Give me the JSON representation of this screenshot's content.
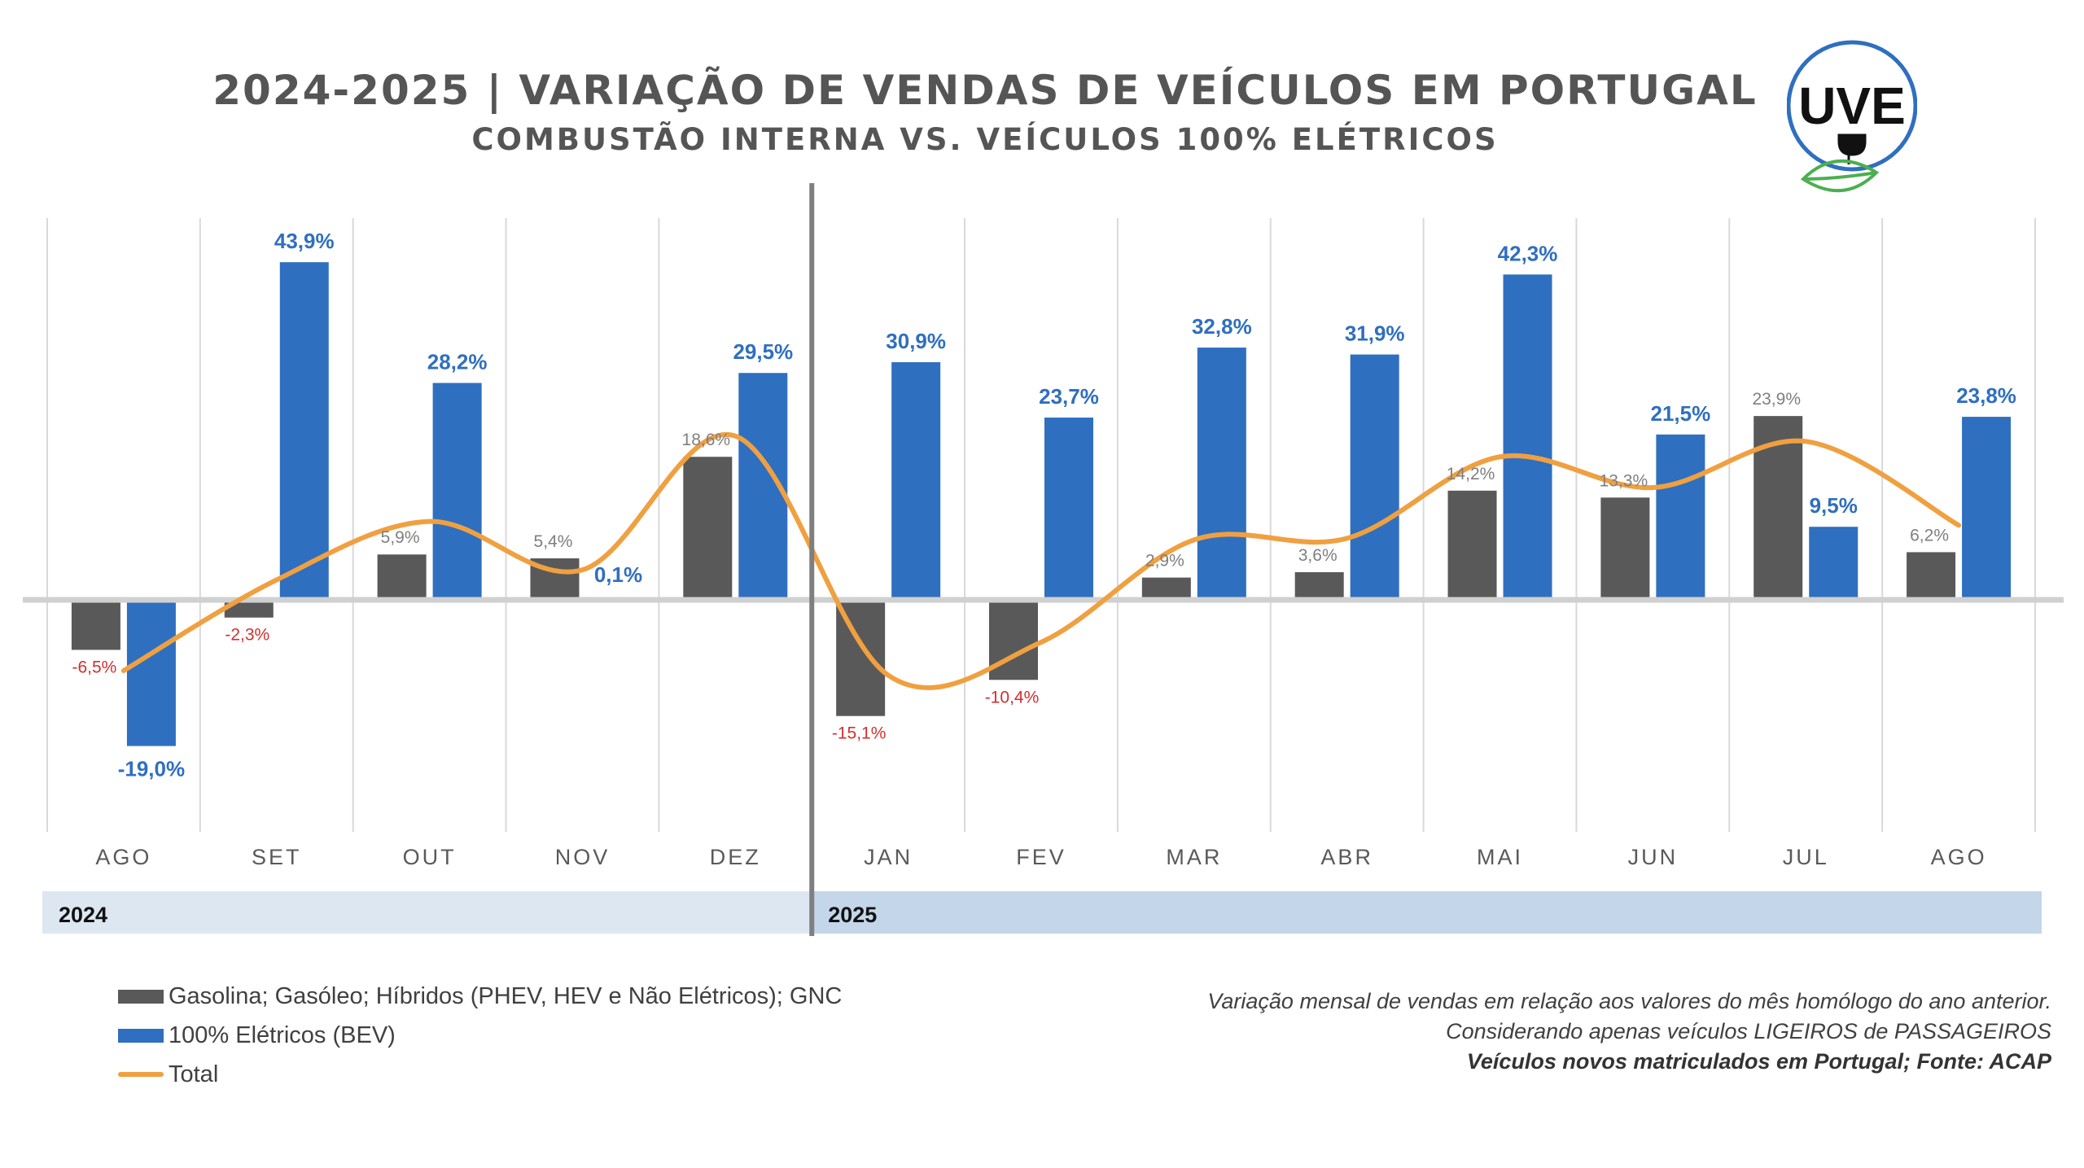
{
  "title": "2024-2025 | VARIAÇÃO DE VENDAS DE VEÍCULOS EM PORTUGAL",
  "subtitle": "COMBUSTÃO INTERNA VS. VEÍCULOS 100% ELÉTRICOS",
  "logo": {
    "text": "UVE"
  },
  "legend": {
    "combustion": "Gasolina; Gasóleo; Híbridos (PHEV, HEV e Não Elétricos); GNC",
    "bev": "100% Elétricos (BEV)",
    "total": "Total"
  },
  "notes": {
    "line1": "Variação mensal de vendas em relação aos valores do mês homólogo do ano anterior.",
    "line2": "Considerando apenas veículos LIGEIROS de PASSAGEIROS",
    "line3": "Veículos novos matriculados em Portugal; Fonte: ACAP"
  },
  "colors": {
    "combustion": "#595959",
    "bev": "#2F6FBF",
    "total": "#F0A040",
    "negative_label": "#D32F2F",
    "band_2024": "#DDE7F2",
    "band_2025": "#C3D6EA"
  },
  "chart_data": {
    "type": "bar",
    "categories": [
      "AGO",
      "SET",
      "OUT",
      "NOV",
      "DEZ",
      "JAN",
      "FEV",
      "MAR",
      "ABR",
      "MAI",
      "JUN",
      "JUL",
      "AGO"
    ],
    "years": [
      {
        "label": "2024",
        "from": 0,
        "to": 4
      },
      {
        "label": "2025",
        "from": 5,
        "to": 12
      }
    ],
    "series": [
      {
        "name": "Gasolina; Gasóleo; Híbridos (PHEV, HEV e Não Elétricos); GNC",
        "values": [
          -6.5,
          -2.3,
          5.9,
          5.4,
          18.6,
          -15.1,
          -10.4,
          2.9,
          3.6,
          14.2,
          13.3,
          23.9,
          6.2
        ],
        "labels": [
          "-6,5%",
          "-2,3%",
          "5,9%",
          "5,4%",
          "18,6%",
          "-15,1%",
          "-10,4%",
          "2,9%",
          "3,6%",
          "14,2%",
          "13,3%",
          "23,9%",
          "6,2%"
        ]
      },
      {
        "name": "100% Elétricos (BEV)",
        "values": [
          -19.0,
          43.9,
          28.2,
          0.1,
          29.5,
          30.9,
          23.7,
          32.8,
          31.9,
          42.3,
          21.5,
          9.5,
          23.8
        ],
        "labels": [
          "-19,0%",
          "43,9%",
          "28,2%",
          "0,1%",
          "29,5%",
          "30,9%",
          "23,7%",
          "32,8%",
          "31,9%",
          "42,3%",
          "21,5%",
          "9,5%",
          "23,8%"
        ]
      }
    ],
    "total": {
      "name": "Total",
      "values": [
        -9.2,
        2.6,
        10.2,
        3.9,
        21.3,
        -9.8,
        -5.5,
        7.8,
        8.0,
        18.6,
        14.6,
        20.6,
        9.7
      ]
    },
    "ylim": [
      -30,
      50
    ]
  }
}
